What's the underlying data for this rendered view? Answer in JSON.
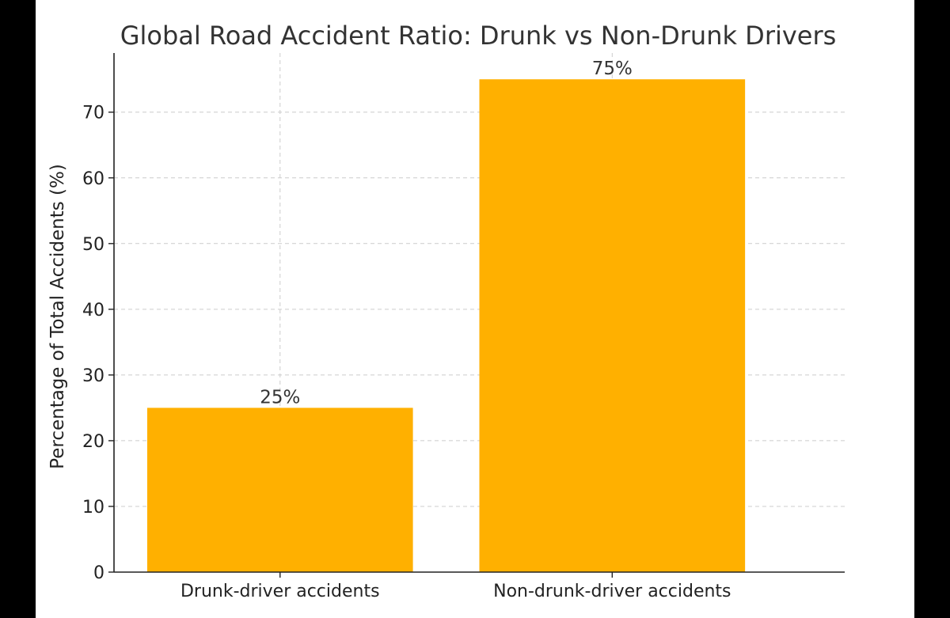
{
  "chart_data": {
    "type": "bar",
    "title": "Global Road Accident Ratio: Drunk vs Non-Drunk Drivers",
    "xlabel": "",
    "ylabel": "Percentage of Total Accidents (%)",
    "categories": [
      "Drunk-driver accidents",
      "Non-drunk-driver accidents"
    ],
    "values": [
      25,
      75
    ],
    "data_labels": [
      "25%",
      "75%"
    ],
    "ylim": [
      0,
      79
    ],
    "yticks": [
      0,
      10,
      20,
      30,
      40,
      50,
      60,
      70
    ],
    "ytick_labels": [
      "0",
      "10",
      "20",
      "30",
      "40",
      "50",
      "60",
      "70"
    ],
    "grid": true,
    "bar_color": "#FFB000",
    "grid_color": "#CCCCCC"
  }
}
